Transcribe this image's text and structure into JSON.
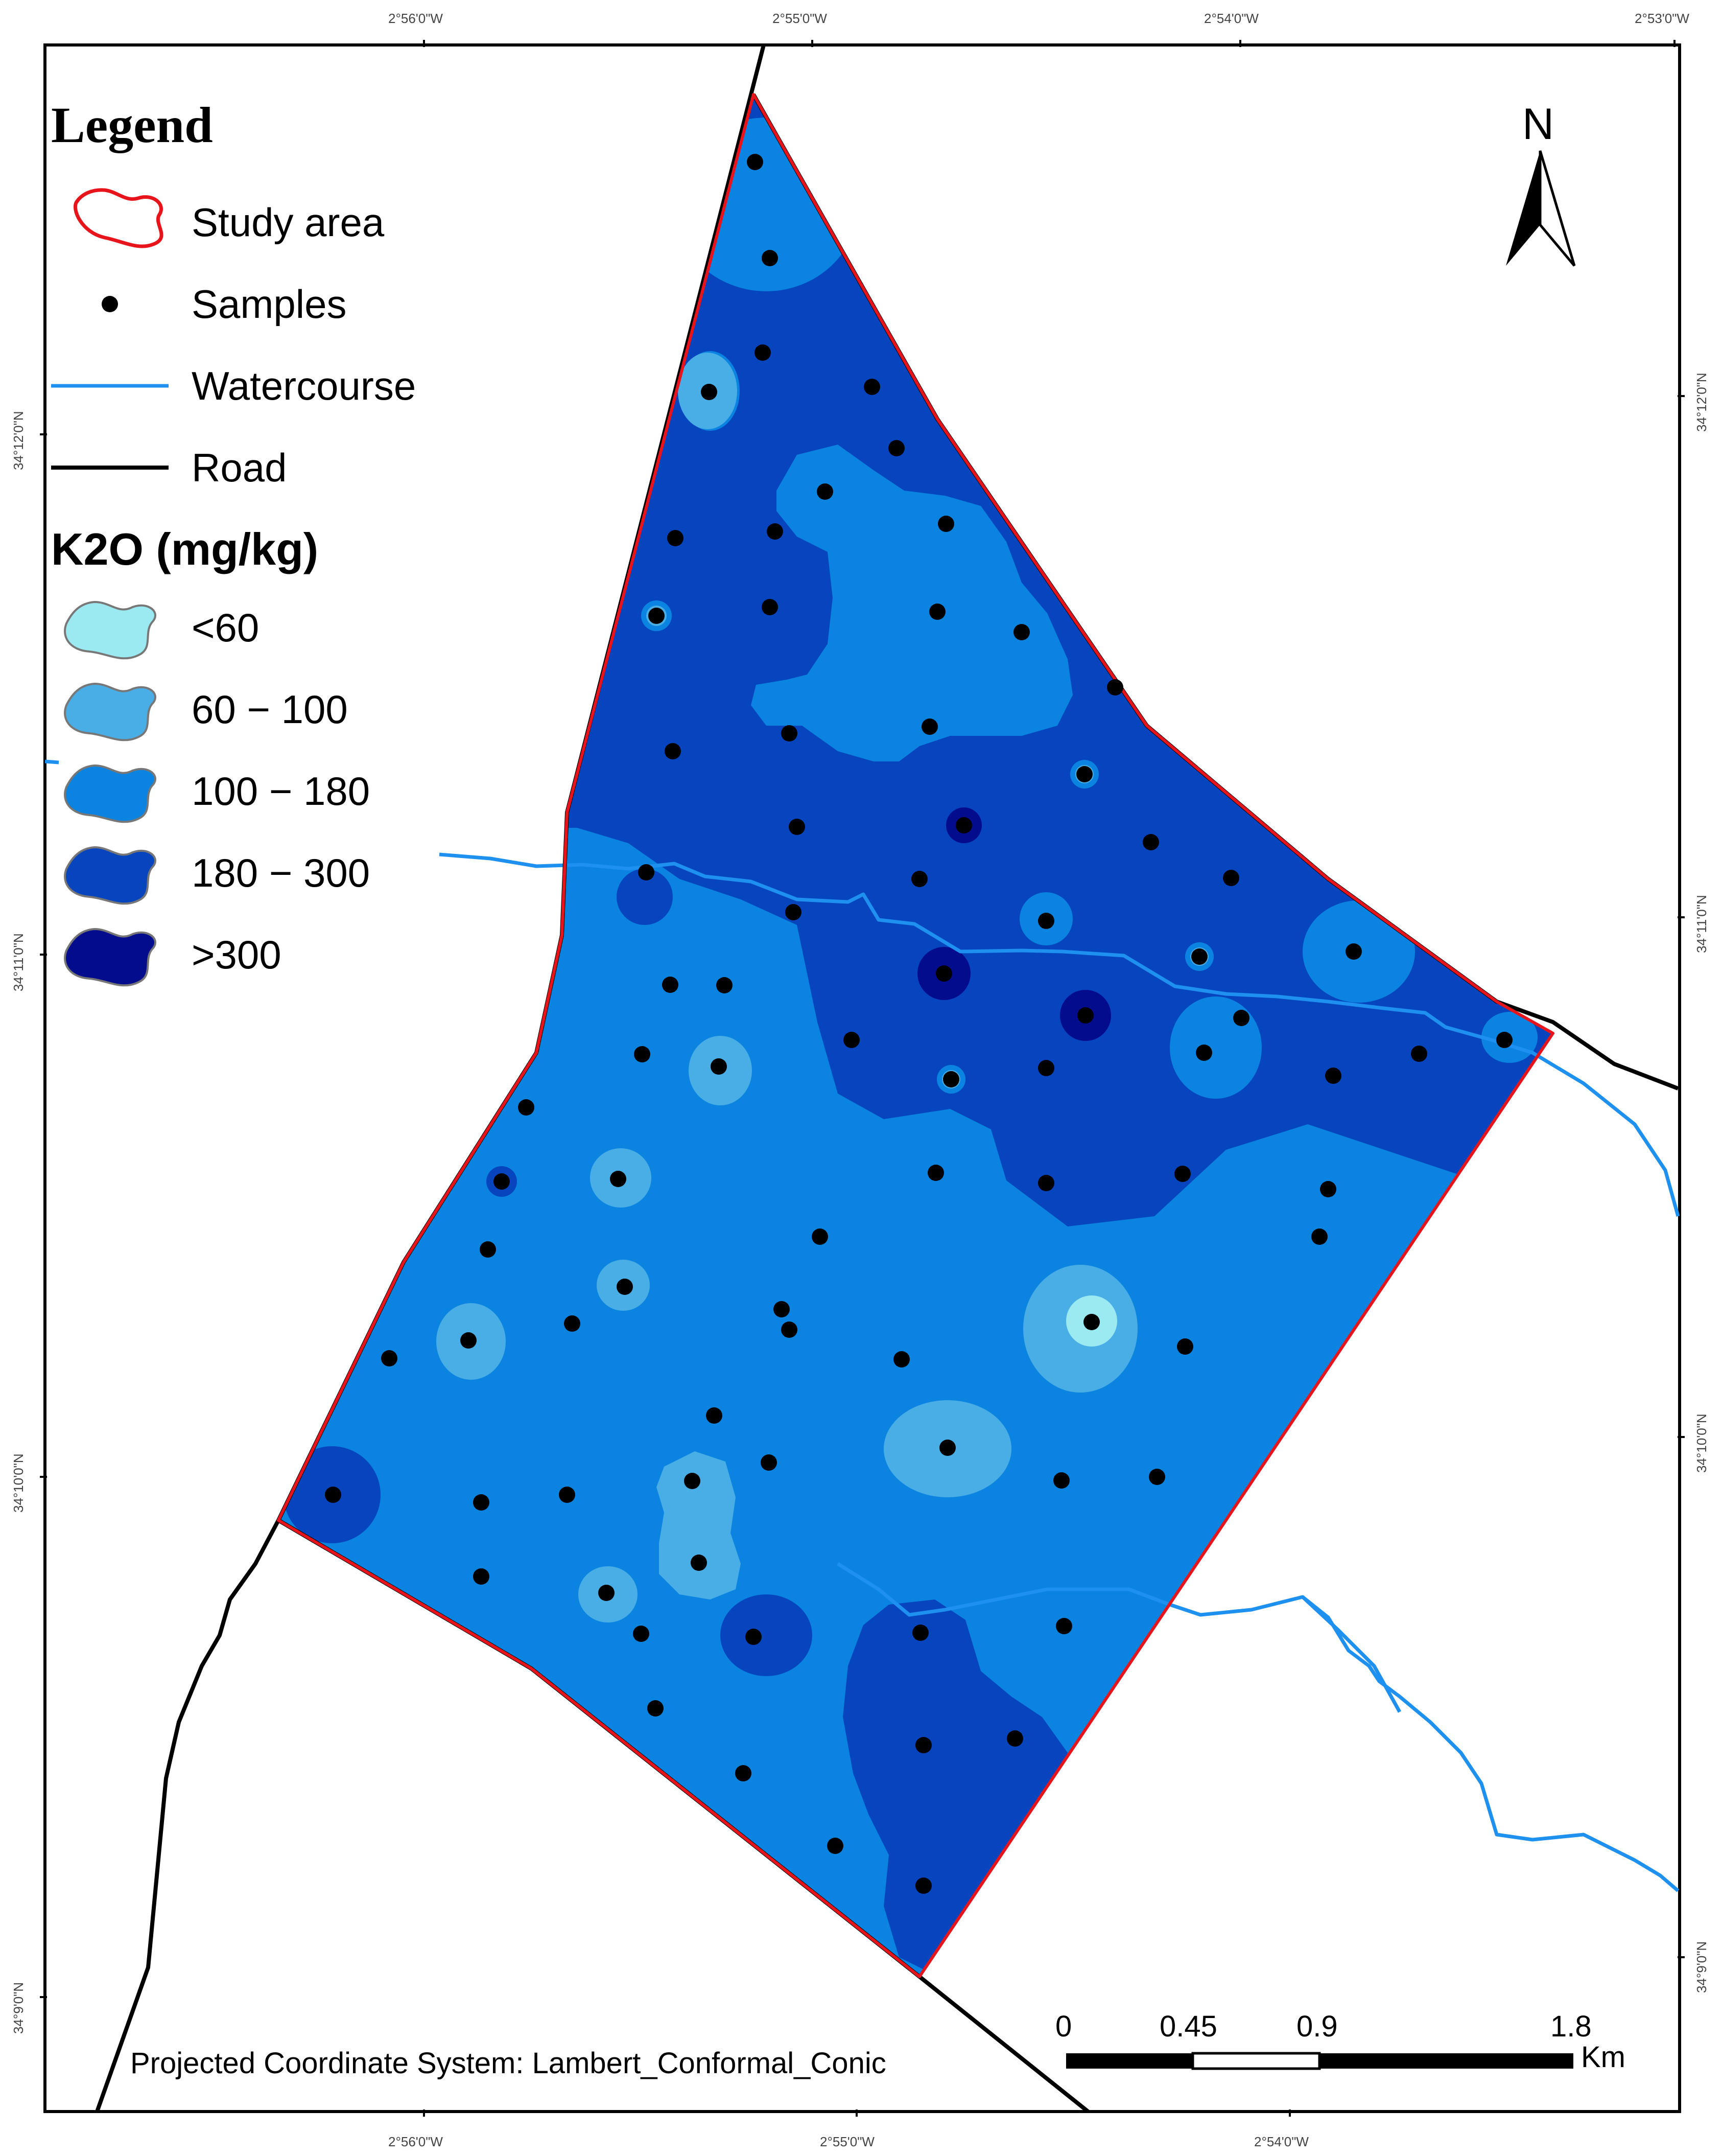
{
  "legend": {
    "title": "Legend",
    "items": {
      "study_area": "Study area",
      "samples": "Samples",
      "watercourse": "Watercourse",
      "road": "Road"
    },
    "k2o_title": "K2O (mg/kg)",
    "classes": [
      {
        "label": "<60",
        "color": "#9beaf2"
      },
      {
        "label": "60 − 100",
        "color": "#4aaee6"
      },
      {
        "label": "100 − 180",
        "color": "#0a84e0"
      },
      {
        "label": "180 − 300",
        "color": "#0645bd"
      },
      {
        "label": ">300",
        "color": "#020c8c"
      }
    ]
  },
  "north_arrow": {
    "label": "N"
  },
  "scale_bar": {
    "labels": [
      "0",
      "0.45",
      "0.9",
      "1.8"
    ],
    "unit": "Km"
  },
  "projection": "Projected Coordinate System: Lambert_Conformal_Conic",
  "coordinates": {
    "top": [
      "2°56'0\"W",
      "2°55'0\"W",
      "2°54'0\"W",
      "2°53'0\"W"
    ],
    "bottom": [
      "2°56'0\"W",
      "2°55'0\"W",
      "2°54'0\"W"
    ],
    "left": [
      "34°12'0\"N",
      "34°11'0\"N",
      "34°10'0\"N",
      "34°9'0\"N"
    ],
    "right": [
      "34°12'0\"N",
      "34°11'0\"N",
      "34°10'0\"N",
      "34°9'0\"N"
    ]
  },
  "colors": {
    "study_area_outline": "#e8141b",
    "watercourse": "#1e90f0",
    "road": "#000000",
    "sample": "#000000",
    "frame": "#000000"
  }
}
